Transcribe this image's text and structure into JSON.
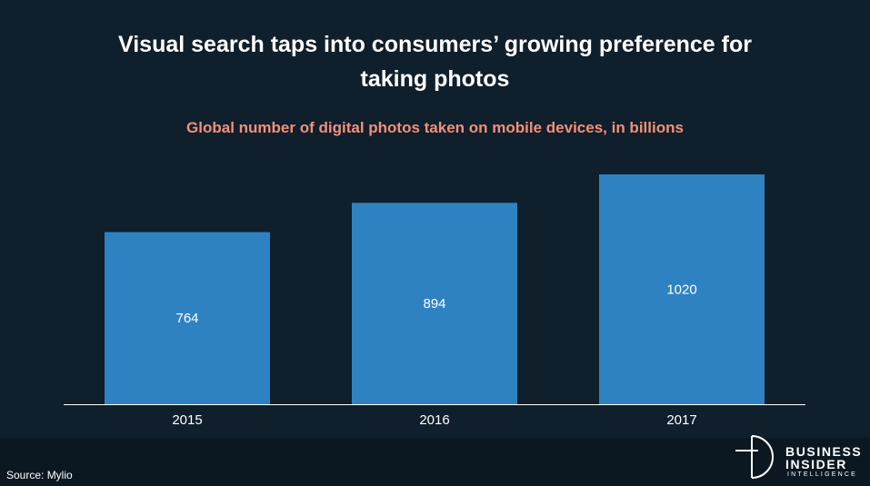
{
  "title": "Visual search taps into consumers’ growing preference for taking photos",
  "subtitle": "Global number of digital photos taken on mobile devices, in billions",
  "source": "Source: Mylio",
  "logo": {
    "line1": "BUSINESS",
    "line2": "INSIDER",
    "line3": "INTELLIGENCE",
    "icon": "bi-intelligence-logo-icon"
  },
  "colors": {
    "background": "#0f1f2c",
    "bar": "#2f82c1",
    "subtitle": "#f2917a",
    "text": "#ffffff"
  },
  "chart_data": {
    "type": "bar",
    "categories": [
      "2015",
      "2016",
      "2017"
    ],
    "values": [
      764,
      894,
      1020
    ],
    "data_labels": [
      "764",
      "894",
      "1020"
    ],
    "title": "Visual search taps into consumers’ growing preference for taking photos",
    "subtitle": "Global number of digital photos taken on mobile devices, in billions",
    "xlabel": "",
    "ylabel": "",
    "ylim": [
      0,
      1020
    ],
    "grid": false,
    "legend": "none"
  }
}
